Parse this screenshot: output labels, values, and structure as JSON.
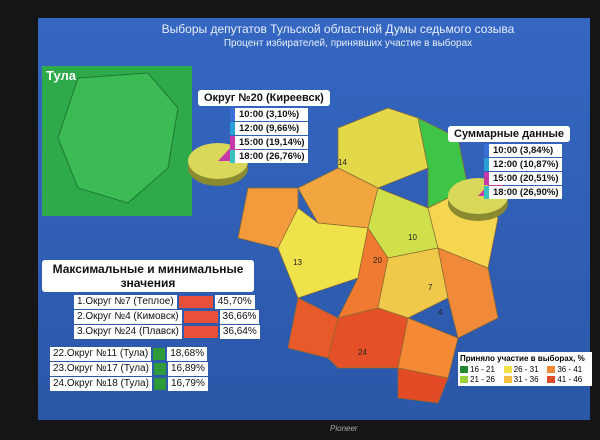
{
  "header": {
    "title": "Выборы депутатов Тульской областной Думы седьмого созыва",
    "subtitle": "Процент избирателей, принявших участие в выборах"
  },
  "inset": {
    "title": "Тула"
  },
  "district_callout": {
    "title": "Округ №20 (Киреевск)",
    "items": [
      "10:00 (3,10%)",
      "12:00 (9,66%)",
      "15:00 (19,14%)",
      "18:00 (26,76%)"
    ]
  },
  "summary_callout": {
    "title": "Суммарные данные",
    "items": [
      "10:00 (3,84%)",
      "12:00 (10,87%)",
      "15:00 (20,51%)",
      "18:00 (26,90%)"
    ]
  },
  "ranking": {
    "title": "Максимальные и минимальные значения",
    "max": [
      [
        "1.Округ №7 (Теплое)",
        "45,70%"
      ],
      [
        "2.Округ №4 (Кимовск)",
        "36,66%"
      ],
      [
        "3.Округ №24 (Плавск)",
        "36,64%"
      ]
    ],
    "min": [
      [
        "22.Округ №11 (Тула)",
        "18,68%"
      ],
      [
        "23.Округ №17 (Тула)",
        "16,89%"
      ],
      [
        "24.Округ №18 (Тула)",
        "16,79%"
      ]
    ]
  },
  "map_labels": [
    "14",
    "13",
    "20",
    "10",
    "7",
    "4",
    "24"
  ],
  "legend": {
    "title": "Приняло участие в выборах, %",
    "items": [
      "16 - 21",
      "21 - 26",
      "26 - 31",
      "31 - 36",
      "36 - 41",
      "41 - 46"
    ]
  },
  "brand": "Pioneer"
}
